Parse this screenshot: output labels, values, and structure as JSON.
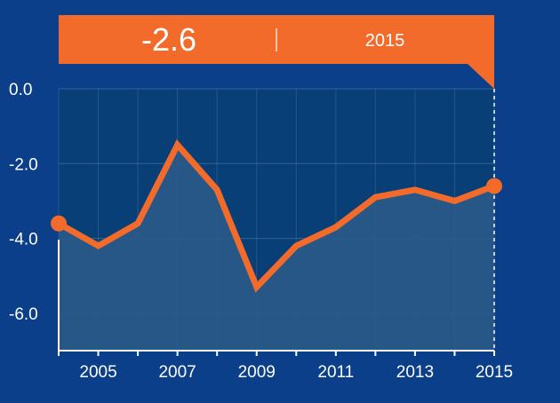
{
  "colors": {
    "background": "#0b3f8a",
    "plot_background": "#083f76",
    "area_fill": "#2a5a8a",
    "line": "#f26b2a",
    "banner": "#f26b2a",
    "text": "#ffffff",
    "grid": "#4b72a5"
  },
  "banner": {
    "value": "-2.6",
    "year": "2015"
  },
  "chart_data": {
    "type": "area",
    "x": [
      2004,
      2005,
      2006,
      2007,
      2008,
      2009,
      2010,
      2011,
      2012,
      2013,
      2014,
      2015
    ],
    "values": [
      -3.6,
      -4.2,
      -3.6,
      -1.5,
      -2.7,
      -5.3,
      -4.2,
      -3.7,
      -2.9,
      -2.7,
      -3.0,
      -2.6
    ],
    "x_tick_labels": [
      "2005",
      "2007",
      "2009",
      "2011",
      "2013",
      "2015"
    ],
    "y_tick_labels": [
      "0.0",
      "-2.0",
      "-4.0",
      "-6.0"
    ],
    "y_ticks": [
      0,
      -2,
      -4,
      -6
    ],
    "ylim": [
      -7,
      0
    ],
    "xlim": [
      2004,
      2015
    ],
    "grid": true,
    "highlight": {
      "x": 2015,
      "value": -2.6
    }
  }
}
